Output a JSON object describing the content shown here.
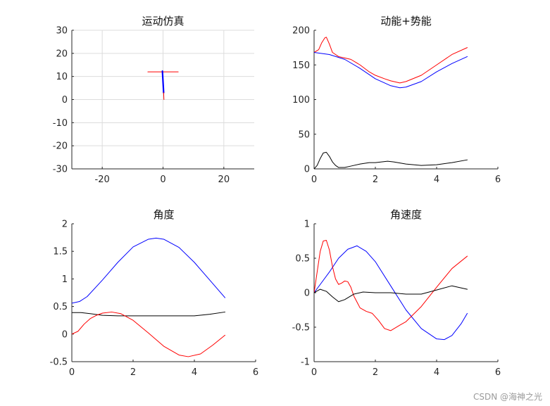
{
  "watermark": "CSDN @海神之光",
  "chart_data": [
    {
      "type": "line",
      "title": "运动仿真",
      "xlim": [
        -30,
        30
      ],
      "ylim": [
        -30,
        30
      ],
      "xticks": [
        -20,
        0,
        20
      ],
      "yticks": [
        -30,
        -20,
        -10,
        0,
        10,
        20,
        30
      ],
      "grid": true,
      "series": [
        {
          "color": "#ff0000",
          "x": [
            -5,
            5
          ],
          "y": [
            12,
            12
          ]
        },
        {
          "color": "#0000ff",
          "x": [
            -0.2,
            0.2
          ],
          "y": [
            12.3,
            3
          ]
        },
        {
          "color": "#ff0000",
          "x": [
            0.2,
            0.3
          ],
          "y": [
            3,
            0
          ]
        }
      ]
    },
    {
      "type": "line",
      "title": "动能+势能",
      "xlim": [
        0,
        6
      ],
      "ylim": [
        0,
        200
      ],
      "xticks": [
        0,
        2,
        4,
        6
      ],
      "yticks": [
        0,
        50,
        100,
        150,
        200
      ],
      "grid": false,
      "series": [
        {
          "color": "#ff0000",
          "x": [
            0,
            0.15,
            0.25,
            0.35,
            0.4,
            0.5,
            0.6,
            0.8,
            1.0,
            1.2,
            1.5,
            1.8,
            2.0,
            2.3,
            2.5,
            2.8,
            3.0,
            3.5,
            4.0,
            4.5,
            5.0
          ],
          "y": [
            168,
            172,
            182,
            189,
            190,
            180,
            168,
            162,
            160,
            158,
            150,
            140,
            135,
            130,
            127,
            124,
            126,
            135,
            150,
            165,
            175
          ]
        },
        {
          "color": "#0000ff",
          "x": [
            0,
            0.5,
            1.0,
            1.5,
            2.0,
            2.5,
            2.8,
            3.0,
            3.5,
            4.0,
            4.5,
            5.0
          ],
          "y": [
            168,
            165,
            158,
            145,
            130,
            120,
            117,
            118,
            126,
            140,
            152,
            162
          ]
        },
        {
          "color": "#000000",
          "x": [
            0,
            0.1,
            0.2,
            0.3,
            0.4,
            0.5,
            0.6,
            0.7,
            0.8,
            1.0,
            1.2,
            1.5,
            1.8,
            2.0,
            2.2,
            2.4,
            2.6,
            3.0,
            3.5,
            4.0,
            4.5,
            5.0
          ],
          "y": [
            0,
            5,
            15,
            23,
            24,
            18,
            10,
            5,
            2,
            2,
            4,
            7,
            9,
            9,
            10,
            11,
            10,
            7,
            5,
            6,
            9,
            13
          ]
        }
      ]
    },
    {
      "type": "line",
      "title": "角度",
      "xlim": [
        0,
        6
      ],
      "ylim": [
        -0.5,
        2
      ],
      "xticks": [
        0,
        2,
        4,
        6
      ],
      "yticks": [
        -0.5,
        0,
        0.5,
        1,
        1.5,
        2
      ],
      "grid": false,
      "series": [
        {
          "color": "#0000ff",
          "x": [
            0,
            0.25,
            0.5,
            1.0,
            1.5,
            2.0,
            2.5,
            2.75,
            3.0,
            3.5,
            4.0,
            4.5,
            5.0
          ],
          "y": [
            0.56,
            0.59,
            0.68,
            0.98,
            1.3,
            1.58,
            1.72,
            1.74,
            1.72,
            1.57,
            1.3,
            0.98,
            0.66
          ]
        },
        {
          "color": "#000000",
          "x": [
            0,
            0.3,
            0.6,
            1.0,
            1.5,
            2.0,
            2.5,
            3.0,
            3.5,
            4.0,
            4.5,
            5.0
          ],
          "y": [
            0.39,
            0.39,
            0.37,
            0.34,
            0.33,
            0.33,
            0.33,
            0.33,
            0.33,
            0.33,
            0.36,
            0.4
          ]
        },
        {
          "color": "#ff0000",
          "x": [
            0,
            0.2,
            0.4,
            0.6,
            0.8,
            1.0,
            1.3,
            1.6,
            2.0,
            2.5,
            3.0,
            3.5,
            3.8,
            4.2,
            4.6,
            5.0
          ],
          "y": [
            0.0,
            0.05,
            0.18,
            0.28,
            0.34,
            0.38,
            0.4,
            0.37,
            0.25,
            0.02,
            -0.22,
            -0.38,
            -0.41,
            -0.36,
            -0.2,
            -0.02
          ]
        }
      ]
    },
    {
      "type": "line",
      "title": "角速度",
      "xlim": [
        0,
        6
      ],
      "ylim": [
        -1,
        1
      ],
      "xticks": [
        0,
        2,
        4,
        6
      ],
      "yticks": [
        -1,
        -0.5,
        0,
        0.5,
        1
      ],
      "grid": false,
      "series": [
        {
          "color": "#0000ff",
          "x": [
            0,
            0.2,
            0.5,
            0.8,
            1.1,
            1.4,
            1.7,
            2.0,
            2.5,
            3.0,
            3.5,
            4.0,
            4.25,
            4.5,
            4.8,
            5.0
          ],
          "y": [
            0.0,
            0.12,
            0.3,
            0.5,
            0.63,
            0.68,
            0.6,
            0.45,
            0.1,
            -0.25,
            -0.52,
            -0.67,
            -0.68,
            -0.62,
            -0.45,
            -0.3
          ]
        },
        {
          "color": "#ff0000",
          "x": [
            0,
            0.1,
            0.2,
            0.3,
            0.4,
            0.5,
            0.6,
            0.7,
            0.8,
            0.9,
            1.0,
            1.1,
            1.2,
            1.3,
            1.5,
            1.7,
            1.9,
            2.1,
            2.3,
            2.5,
            2.8,
            3.0,
            3.5,
            4.0,
            4.5,
            5.0
          ],
          "y": [
            0.0,
            0.3,
            0.6,
            0.75,
            0.76,
            0.62,
            0.38,
            0.2,
            0.12,
            0.14,
            0.17,
            0.16,
            0.08,
            -0.05,
            -0.22,
            -0.27,
            -0.3,
            -0.4,
            -0.52,
            -0.55,
            -0.47,
            -0.42,
            -0.2,
            0.08,
            0.35,
            0.53
          ]
        },
        {
          "color": "#000000",
          "x": [
            0,
            0.2,
            0.4,
            0.6,
            0.8,
            1.0,
            1.3,
            1.6,
            2.0,
            2.5,
            3.0,
            3.5,
            4.0,
            4.5,
            5.0
          ],
          "y": [
            0.0,
            0.05,
            0.02,
            -0.06,
            -0.13,
            -0.1,
            -0.02,
            0.01,
            0.0,
            0.0,
            -0.02,
            -0.02,
            0.04,
            0.1,
            0.05
          ]
        }
      ]
    }
  ]
}
